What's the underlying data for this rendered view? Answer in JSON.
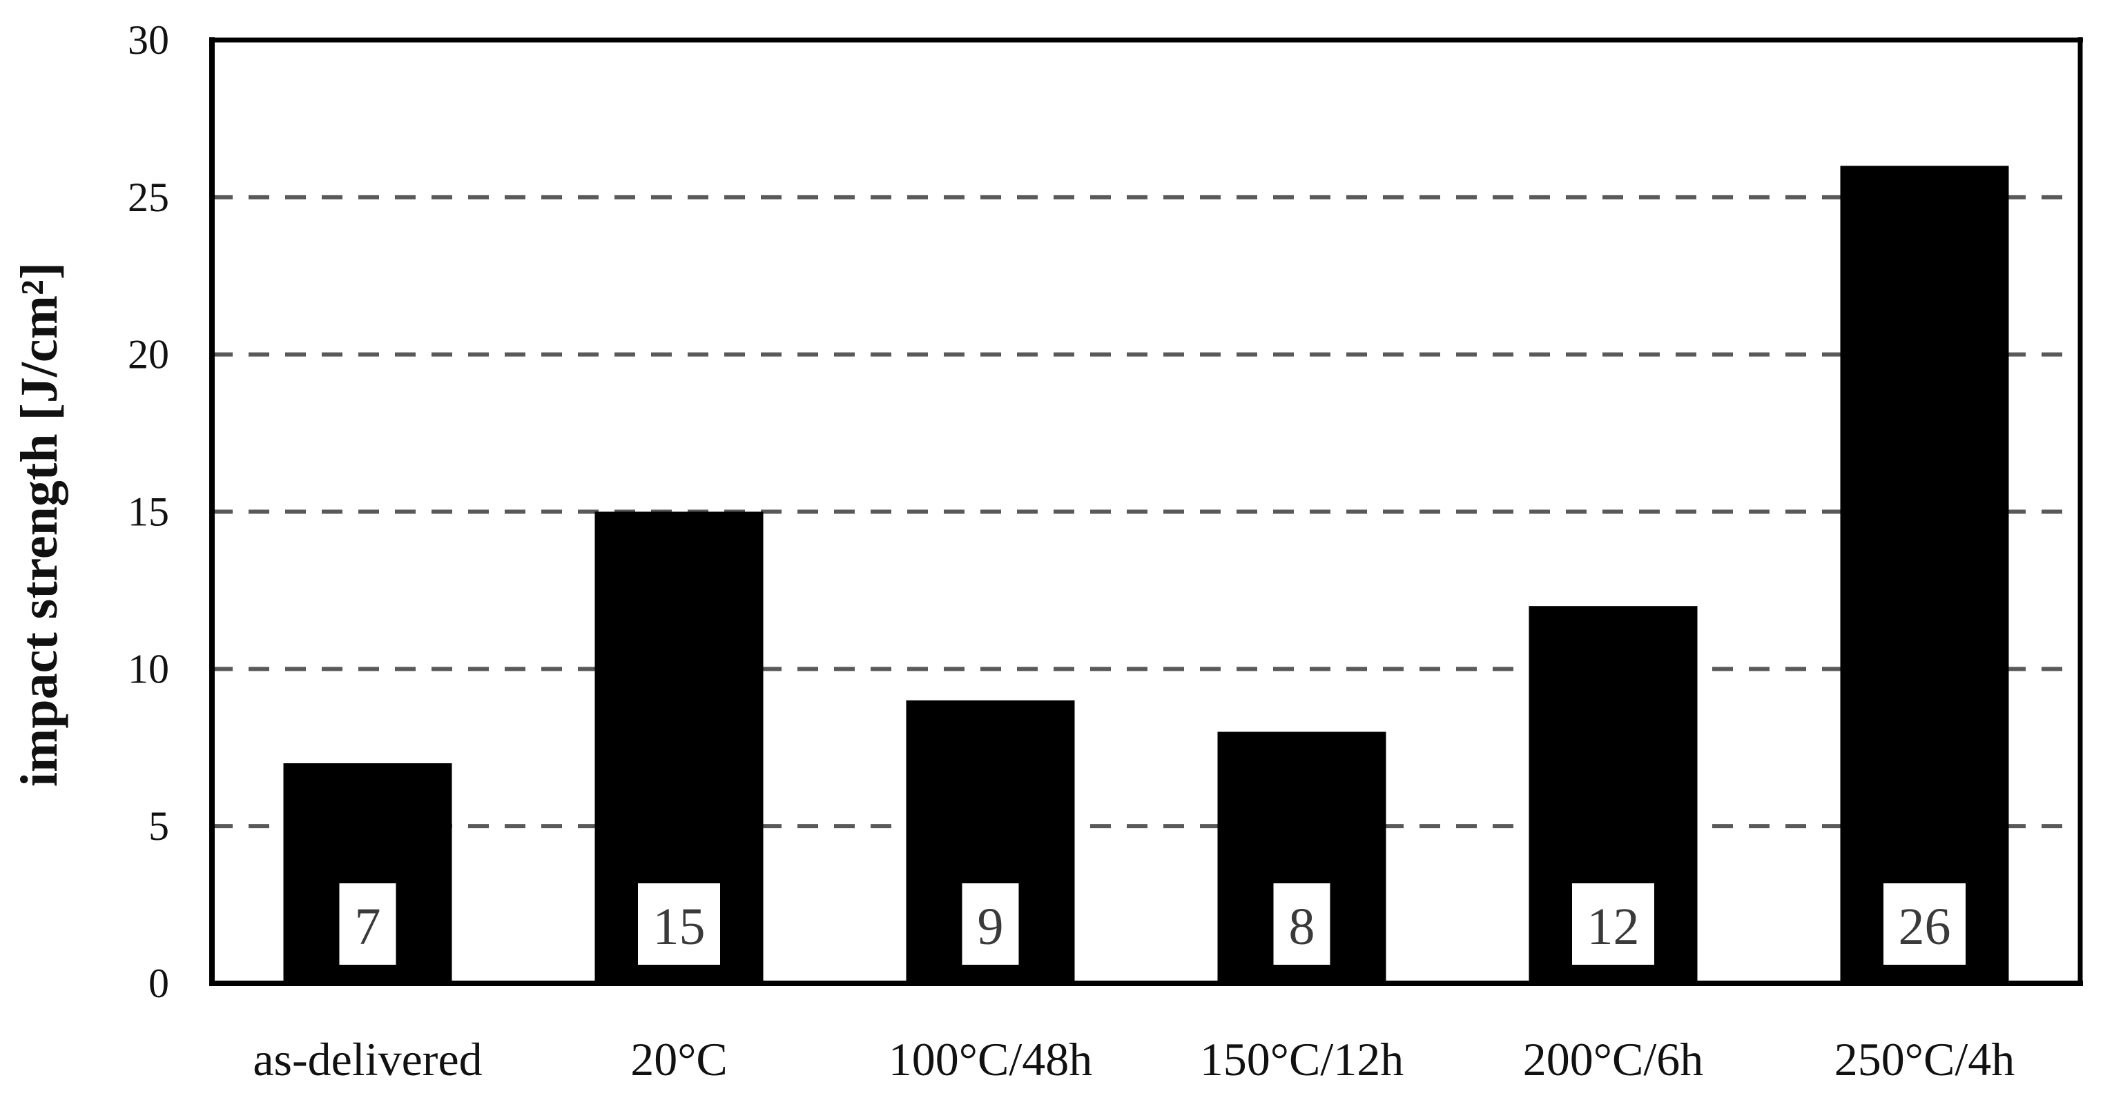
{
  "figure": {
    "background_color": "#ffffff",
    "description": "Column chart of impact strength versus heat-treatment condition"
  },
  "chart_data": {
    "type": "bar",
    "title": "",
    "categories": [
      "as-delivered",
      "20°C",
      "100°C/48h",
      "150°C/12h",
      "200°C/6h",
      "250°C/4h"
    ],
    "values": [
      7,
      15,
      9,
      8,
      12,
      26
    ],
    "data_labels": [
      "7",
      "15",
      "9",
      "8",
      "12",
      "26"
    ],
    "xlabel": "",
    "ylabel": "impact strength [J/cm²]",
    "ylim": [
      0,
      30
    ],
    "yticks": [
      0,
      5,
      10,
      15,
      20,
      25,
      30
    ],
    "gridlines": {
      "visible": true,
      "style": "dashed",
      "levels": [
        5,
        10,
        15,
        20,
        25
      ]
    },
    "legend_position": "none",
    "colors": {
      "bar": "#000000",
      "gridline": "#595959",
      "axis": "#000000",
      "tick_label": "#111111",
      "category_label": "#111111",
      "data_label_text": "#3a3a3a",
      "data_label_box": "#ffffff"
    },
    "data_label_position": "inside-base-in-white-box"
  }
}
